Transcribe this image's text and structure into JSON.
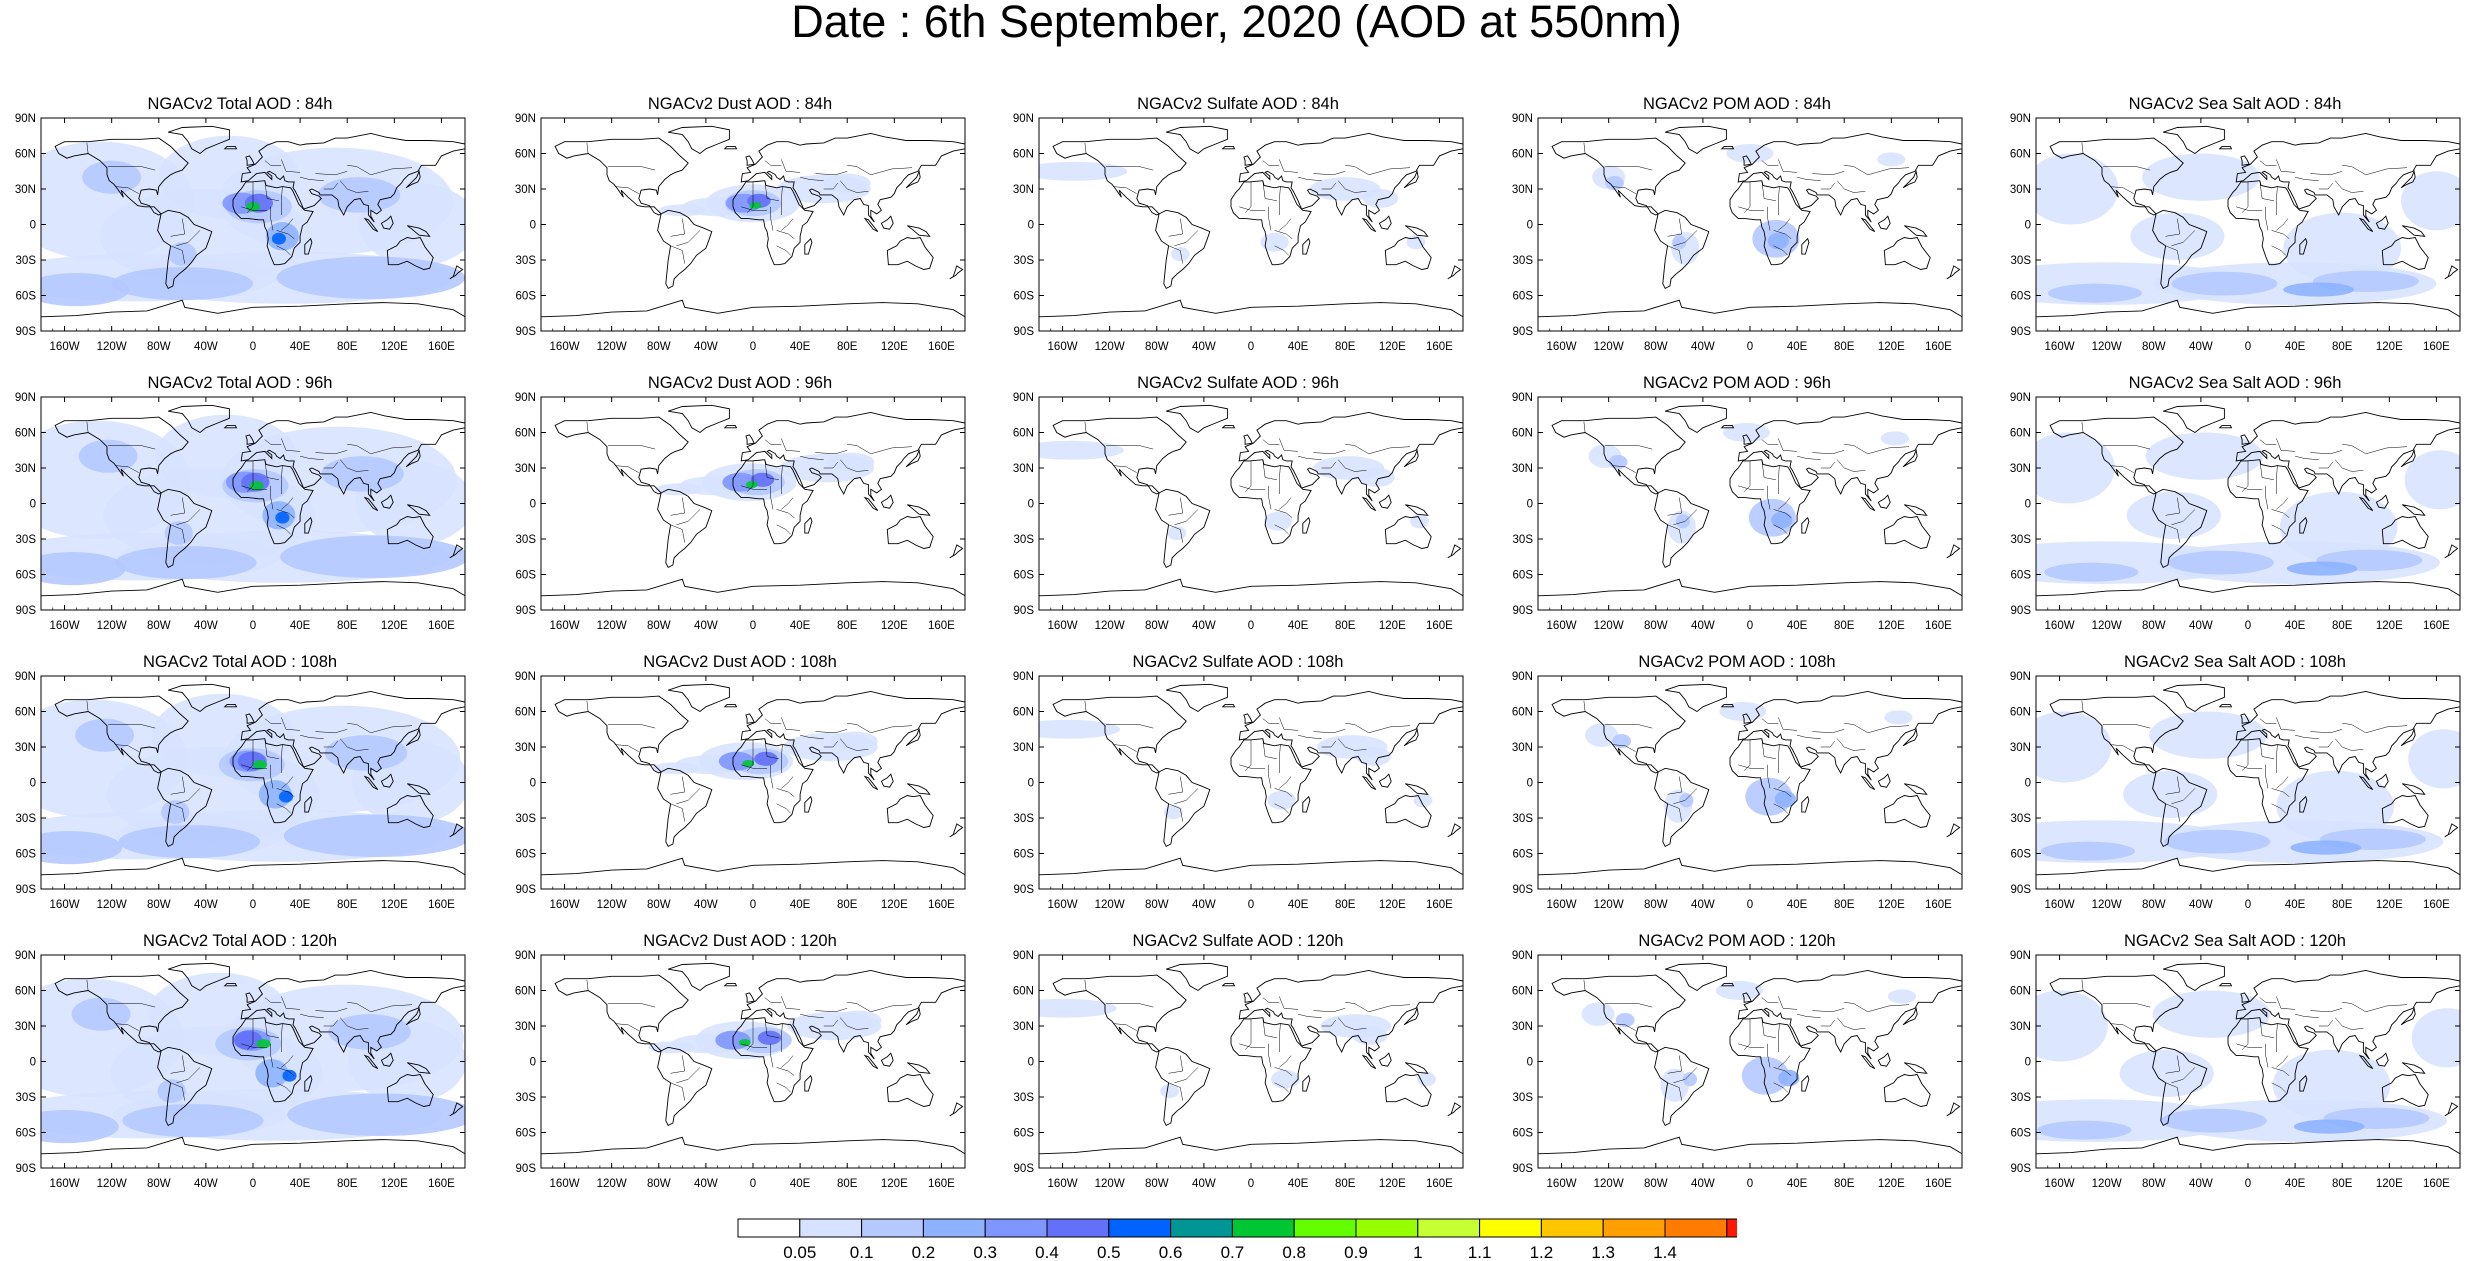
{
  "title": "Date : 6th September, 2020 (AOD at 550nm)",
  "lat_labels": [
    "90N",
    "60N",
    "30N",
    "0",
    "30S",
    "60S",
    "90S"
  ],
  "lon_labels": [
    "160W",
    "120W",
    "80W",
    "40W",
    "0",
    "40E",
    "80E",
    "120E",
    "160E"
  ],
  "lon_values": [
    -160,
    -120,
    -80,
    -40,
    0,
    40,
    80,
    120,
    160
  ],
  "lat_values": [
    90,
    60,
    30,
    0,
    -30,
    -60,
    -90
  ],
  "columns": [
    "total",
    "dust",
    "sulfate",
    "pom",
    "seasalt"
  ],
  "rows": [
    {
      "titles": [
        "NGACv2 Total AOD : 84h",
        "NGACv2 Dust AOD : 84h",
        "NGACv2 Sulfate AOD : 84h",
        "NGACv2 POM AOD : 84h",
        "NGACv2 Sea Salt AOD : 84h"
      ]
    },
    {
      "titles": [
        "NGACv2 Total AOD : 96h",
        "NGACv2 Dust AOD : 96h",
        "NGACv2 Sulfate AOD : 96h",
        "NGACv2 POM AOD : 96h",
        "NGACv2 Sea Salt AOD : 96h"
      ]
    },
    {
      "titles": [
        "NGACv2 Total AOD : 108h",
        "NGACv2 Dust AOD : 108h",
        "NGACv2 Sulfate AOD : 108h",
        "NGACv2 POM AOD : 108h",
        "NGACv2 Sea Salt AOD : 108h"
      ]
    },
    {
      "titles": [
        "NGACv2 Total AOD : 120h",
        "NGACv2 Dust AOD : 120h",
        "NGACv2 Sulfate AOD : 120h",
        "NGACv2 POM AOD : 120h",
        "NGACv2 Sea Salt  AOD : 120h"
      ]
    }
  ],
  "colorbar": {
    "labels": [
      "0.05",
      "0.1",
      "0.2",
      "0.3",
      "0.4",
      "0.5",
      "0.6",
      "0.7",
      "0.8",
      "0.9",
      "1",
      "1.1",
      "1.2",
      "1.3",
      "1.4"
    ],
    "colors": [
      "#ffffff",
      "#d6e2ff",
      "#b5c9ff",
      "#8eb2ff",
      "#7f96ff",
      "#6370f8",
      "#0063ff",
      "#009696",
      "#00c633",
      "#63ff00",
      "#96ff00",
      "#c6ff33",
      "#ffff00",
      "#ffc600",
      "#ffa000",
      "#ff7c00",
      "#ff1900"
    ]
  }
}
